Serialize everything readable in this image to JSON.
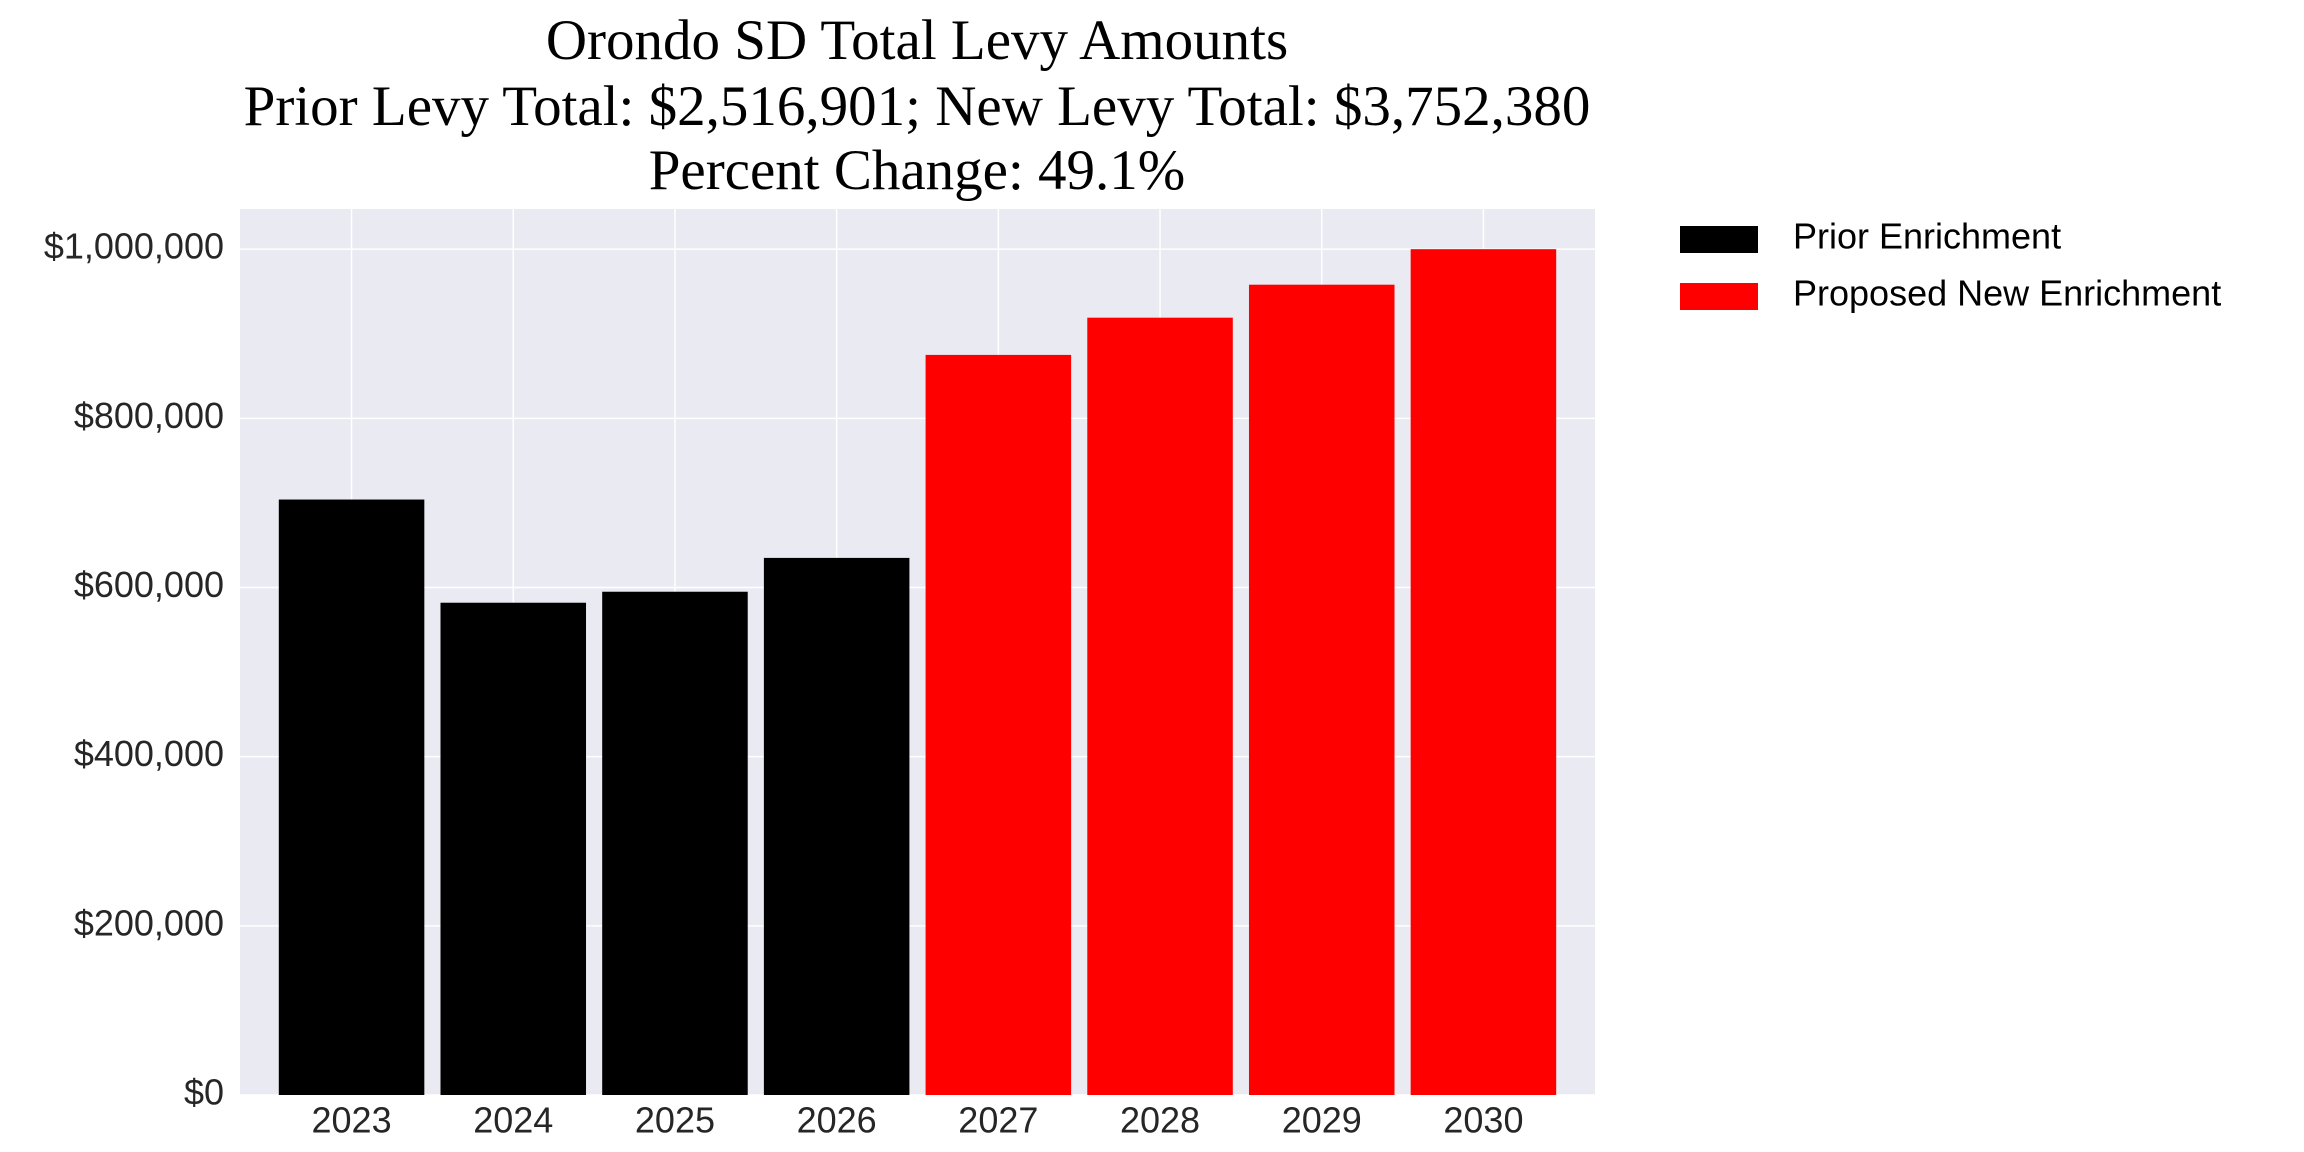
{
  "chart_data": {
    "type": "bar",
    "title": [
      "Orondo SD Total Levy Amounts",
      "Prior Levy Total:  $2,516,901; New Levy Total: $3,752,380",
      "Percent Change: 49.1%"
    ],
    "categories": [
      "2023",
      "2024",
      "2025",
      "2026",
      "2027",
      "2028",
      "2029",
      "2030"
    ],
    "series": [
      {
        "name": "Prior Enrichment",
        "color": "#000000",
        "values": [
          704000,
          582000,
          595000,
          635000,
          null,
          null,
          null,
          null
        ]
      },
      {
        "name": "Proposed New Enrichment",
        "color": "#ff0000",
        "values": [
          null,
          null,
          null,
          null,
          875000,
          919000,
          958000,
          1000000
        ]
      }
    ],
    "ylim": [
      0,
      1047500
    ],
    "yticks": [
      {
        "value": 0,
        "label": "$0"
      },
      {
        "value": 200000,
        "label": "$200,000"
      },
      {
        "value": 400000,
        "label": "$400,000"
      },
      {
        "value": 600000,
        "label": "$600,000"
      },
      {
        "value": 800000,
        "label": "$800,000"
      },
      {
        "value": 1000000,
        "label": "$1,000,000"
      }
    ],
    "grid": true,
    "legend": "outside-upper-right"
  }
}
